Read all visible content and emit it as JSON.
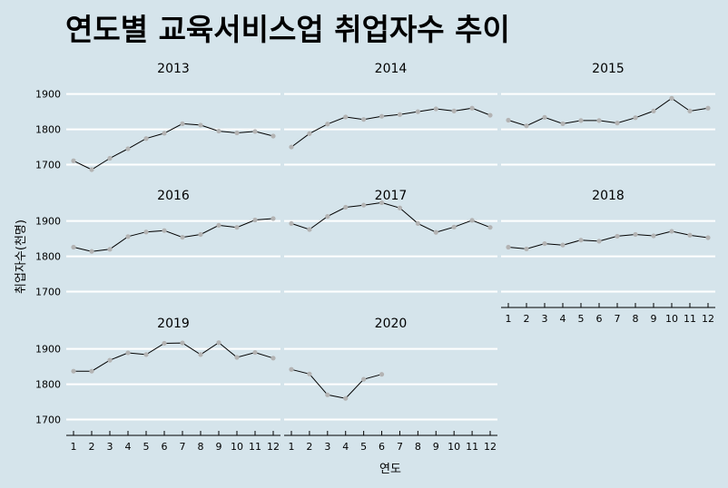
{
  "chart_data": {
    "type": "line",
    "title": "연도별 교육서비스업 취업자수 추이",
    "xlabel": "연도",
    "ylabel": "취업자수(천명)",
    "x": [
      1,
      2,
      3,
      4,
      5,
      6,
      7,
      8,
      9,
      10,
      11,
      12
    ],
    "y_ticks": [
      1700,
      1800,
      1900
    ],
    "ylim": [
      1668,
      1930
    ],
    "grid": true,
    "line_color": "#000000",
    "point_color": "#b3b3b3",
    "background_color": "#d5e4eb",
    "panels": [
      {
        "name": "2013",
        "values": [
          1711,
          1686,
          1718,
          1745,
          1774,
          1789,
          1816,
          1812,
          1795,
          1790,
          1794,
          1781
        ]
      },
      {
        "name": "2014",
        "values": [
          1750,
          1788,
          1815,
          1835,
          1828,
          1837,
          1842,
          1850,
          1858,
          1852,
          1860,
          1840
        ]
      },
      {
        "name": "2015",
        "values": [
          1826,
          1810,
          1834,
          1816,
          1825,
          1825,
          1818,
          1833,
          1852,
          1888,
          1852,
          1860
        ]
      },
      {
        "name": "2016",
        "values": [
          1826,
          1814,
          1820,
          1856,
          1869,
          1873,
          1854,
          1862,
          1888,
          1882,
          1903,
          1907
        ]
      },
      {
        "name": "2017",
        "values": [
          1893,
          1876,
          1913,
          1939,
          1945,
          1952,
          1937,
          1893,
          1868,
          1883,
          1902,
          1882
        ]
      },
      {
        "name": "2018",
        "values": [
          1826,
          1821,
          1836,
          1832,
          1846,
          1843,
          1857,
          1862,
          1858,
          1871,
          1860,
          1853
        ]
      },
      {
        "name": "2019",
        "values": [
          1837,
          1837,
          1868,
          1889,
          1884,
          1916,
          1917,
          1884,
          1918,
          1876,
          1890,
          1874
        ]
      },
      {
        "name": "2020",
        "values": [
          1842,
          1829,
          1770,
          1760,
          1814,
          1828
        ]
      }
    ]
  }
}
